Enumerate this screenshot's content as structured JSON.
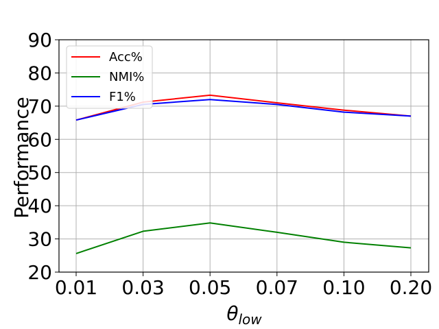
{
  "chart_data": {
    "type": "line",
    "categories": [
      "0.01",
      "0.03",
      "0.05",
      "0.07",
      "0.10",
      "0.20"
    ],
    "series": [
      {
        "name": "Acc%",
        "color": "#ff0000",
        "values": [
          65.8,
          71.2,
          73.3,
          71.0,
          68.8,
          67.0
        ]
      },
      {
        "name": "NMI%",
        "color": "#008000",
        "values": [
          25.6,
          32.3,
          34.8,
          32.0,
          29.0,
          27.3
        ]
      },
      {
        "name": "F1%",
        "color": "#0000ff",
        "values": [
          65.8,
          70.5,
          72.0,
          70.5,
          68.2,
          67.0
        ]
      }
    ],
    "xlabel_symbol": "θ",
    "xlabel_subscript": "low",
    "ylabel": "Performance",
    "ylim": [
      20,
      90
    ],
    "yticks": [
      "20",
      "30",
      "40",
      "50",
      "60",
      "70",
      "80",
      "90"
    ],
    "grid": true,
    "legend": "top-left"
  }
}
